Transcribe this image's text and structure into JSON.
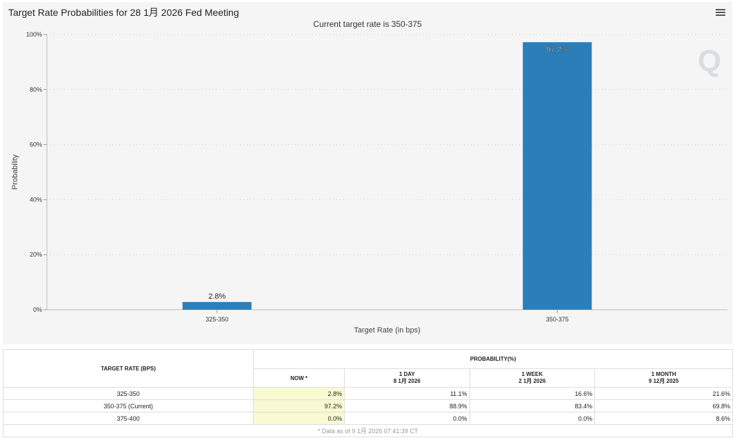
{
  "title": "Target Rate Probabilities for 28 1月 2026 Fed Meeting",
  "subtitle": "Current target rate is 350-375",
  "chart_data": {
    "type": "bar",
    "categories": [
      "325-350",
      "350-375"
    ],
    "values": [
      2.8,
      97.2
    ],
    "data_labels": [
      "2.8%",
      "97.2%"
    ],
    "xlabel": "Target Rate (in bps)",
    "ylabel": "Probability",
    "ylim": [
      0,
      100
    ],
    "yticks": [
      "0%",
      "20%",
      "40%",
      "60%",
      "80%",
      "100%"
    ],
    "grid": true,
    "color": "#2a7fba"
  },
  "table": {
    "col1": "TARGET RATE (BPS)",
    "group": "PROBABILITY(%)",
    "cols": [
      {
        "l1": "NOW *",
        "l2": ""
      },
      {
        "l1": "1 DAY",
        "l2": "8 1月 2026"
      },
      {
        "l1": "1 WEEK",
        "l2": "2 1月 2026"
      },
      {
        "l1": "1 MONTH",
        "l2": "9 12月 2025"
      }
    ],
    "rows": [
      {
        "rate": "325-350",
        "v": [
          "2.8%",
          "11.1%",
          "16.6%",
          "21.6%"
        ]
      },
      {
        "rate": "350-375 (Current)",
        "v": [
          "97.2%",
          "88.9%",
          "83.4%",
          "69.8%"
        ]
      },
      {
        "rate": "375-400",
        "v": [
          "0.0%",
          "0.0%",
          "0.0%",
          "8.6%"
        ]
      }
    ],
    "footnote": "* Data as of 9 1月 2026 07:41:39 CT"
  }
}
